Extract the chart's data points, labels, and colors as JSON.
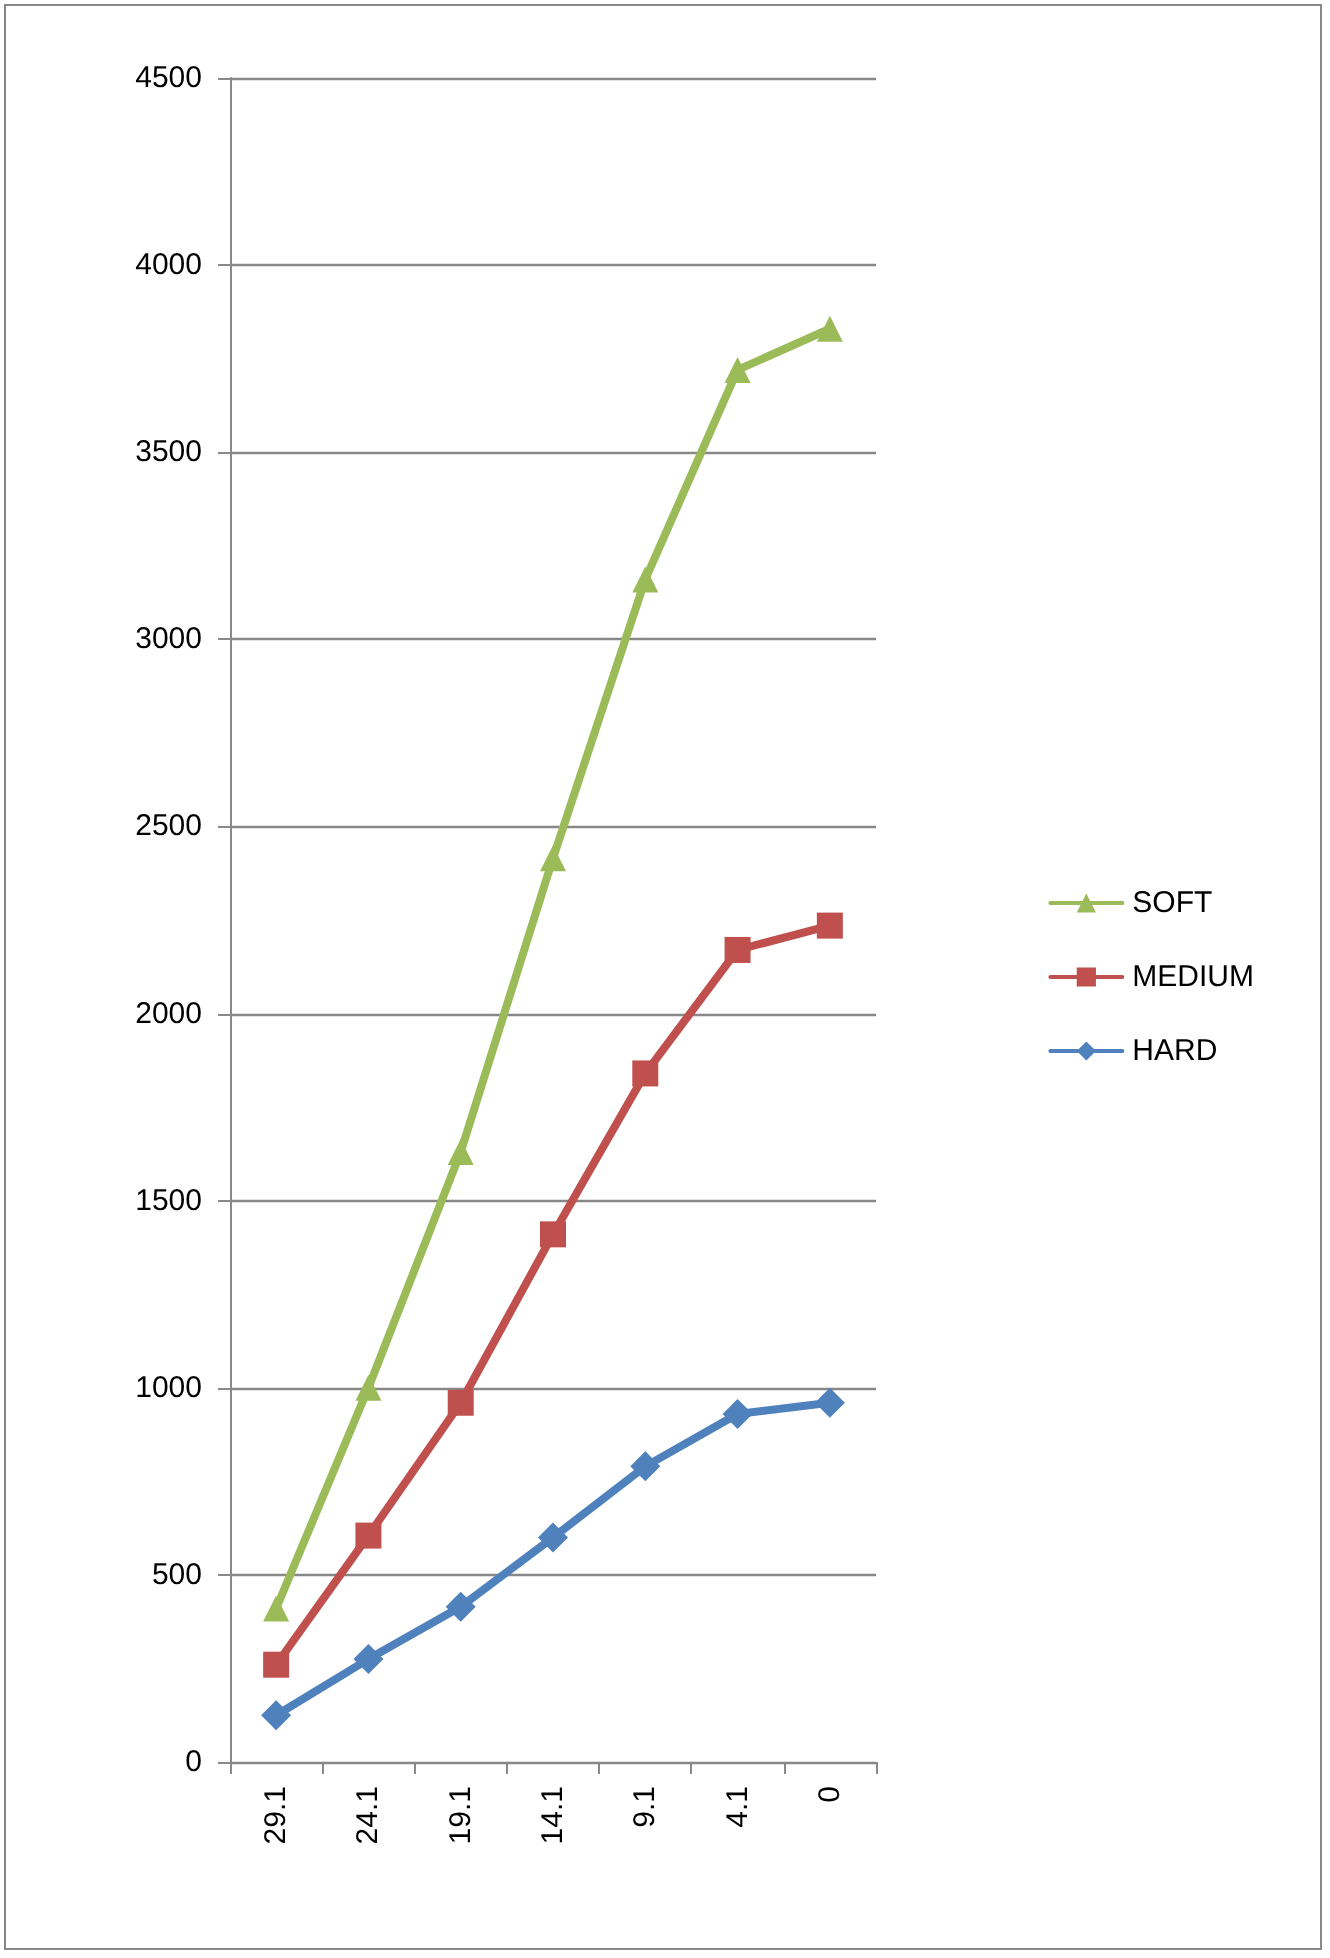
{
  "chart_data": {
    "type": "line",
    "categories": [
      "29.1",
      "24.1",
      "19.1",
      "14.1",
      "9.1",
      "4.1",
      "0"
    ],
    "series": [
      {
        "name": "SOFT",
        "color": "#9bbb59",
        "marker": "triangle",
        "values": [
          410,
          1000,
          1630,
          2415,
          3160,
          3720,
          3830
        ]
      },
      {
        "name": "MEDIUM",
        "color": "#c0504d",
        "marker": "square",
        "values": [
          260,
          605,
          960,
          1410,
          1840,
          2170,
          2235
        ]
      },
      {
        "name": "HARD",
        "color": "#4f81bd",
        "marker": "diamond",
        "values": [
          125,
          275,
          415,
          600,
          790,
          930,
          960
        ]
      }
    ],
    "ylim": [
      0,
      4500
    ],
    "yticks": [
      0,
      500,
      1000,
      1500,
      2000,
      2500,
      3000,
      3500,
      4000,
      4500
    ],
    "grid": "y",
    "legend": "right",
    "line_style": "solid"
  }
}
